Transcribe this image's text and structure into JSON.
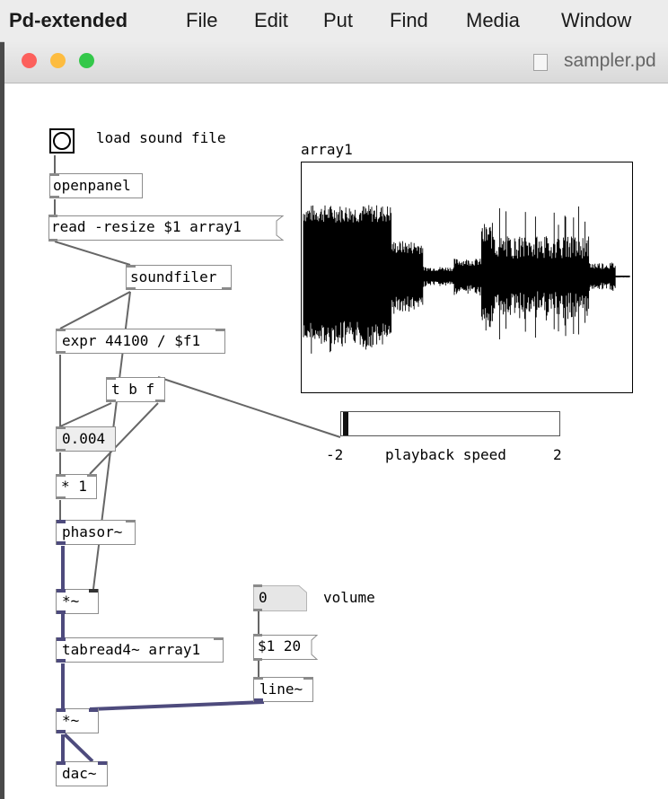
{
  "menubar": {
    "app_name": "Pd-extended",
    "items": [
      "File",
      "Edit",
      "Put",
      "Find",
      "Media",
      "Window"
    ]
  },
  "window": {
    "title": "sampler.pd",
    "traffic_light_colors": {
      "close": "#fc605c",
      "minimize": "#fdbc40",
      "zoom": "#34c84a"
    }
  },
  "patch": {
    "bang_label": "load sound file",
    "objects": {
      "openpanel": "openpanel",
      "read_msg": "read -resize $1 array1",
      "soundfiler": "soundfiler",
      "expr": "expr 44100 / $f1",
      "trigger": "t b f",
      "number_box_value": "0.004",
      "multiply": "* 1",
      "phasor": "phasor~",
      "sig_multiply_1": "*~",
      "tabread": "tabread4~ array1",
      "sig_multiply_2": "*~",
      "dac": "dac~",
      "volume_number_value": "0",
      "volume_msg": "$1 20",
      "line": "line~"
    },
    "volume_label": "volume",
    "array": {
      "name": "array1"
    },
    "slider": {
      "min_label": "-2",
      "max_label": "2",
      "label": "playback speed",
      "min": -2,
      "max": 2,
      "value": -2
    },
    "colors": {
      "control_wire": "#666666",
      "signal_wire": "#4e4b7d",
      "box_border": "#8d8d8d",
      "number_bg": "#eeeeee"
    }
  }
}
